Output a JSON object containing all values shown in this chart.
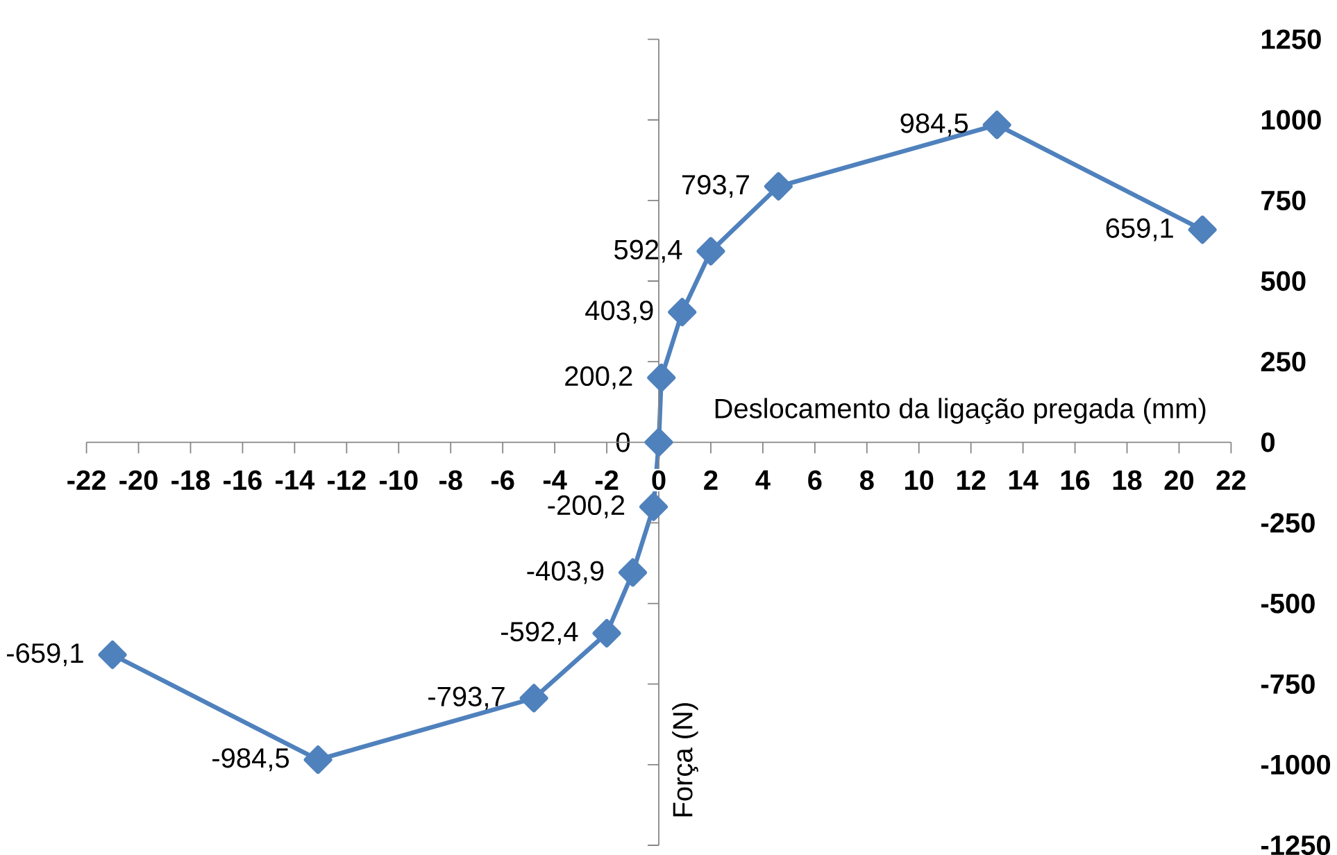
{
  "chart_data": {
    "type": "line",
    "xlabel": "Deslocamento da ligação pregada (mm)",
    "ylabel": "Força (N)",
    "xlim": [
      -22,
      22
    ],
    "xticks": [
      -22,
      -20,
      -18,
      -16,
      -14,
      -12,
      -10,
      -8,
      -6,
      -4,
      -2,
      0,
      2,
      4,
      6,
      8,
      10,
      12,
      14,
      16,
      18,
      20,
      22
    ],
    "ylim": [
      -1250,
      1250
    ],
    "yticks": [
      -1250,
      -1000,
      -750,
      -500,
      -250,
      0,
      250,
      500,
      750,
      1000,
      1250
    ],
    "marker": "diamond",
    "color": "#4f81bd",
    "x": [
      -21.0,
      -13.1,
      -4.8,
      -2.0,
      -1.0,
      -0.2,
      0,
      0.1,
      0.9,
      2.0,
      4.6,
      13.0,
      20.9
    ],
    "values": [
      -659.1,
      -984.5,
      -793.7,
      -592.4,
      -403.9,
      -200.2,
      0,
      200.2,
      403.9,
      592.4,
      793.7,
      984.5,
      659.1
    ],
    "value_labels": [
      "-659,1",
      "-984,5",
      "-793,7",
      "-592,4",
      "-403,9",
      "-200,2",
      "0",
      "200,2",
      "403,9",
      "592,4",
      "793,7",
      "984,5",
      "659,1"
    ]
  }
}
